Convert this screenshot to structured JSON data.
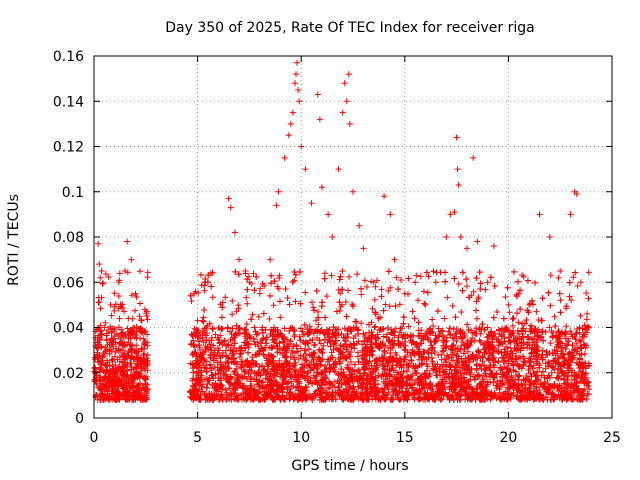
{
  "chart_data": {
    "type": "scatter",
    "title": "Day 350 of 2025, Rate Of TEC Index for receiver riga",
    "xlabel": "GPS time / hours",
    "ylabel": "ROTI / TECUs",
    "xlim": [
      0,
      25
    ],
    "ylim": [
      0,
      0.16
    ],
    "x_ticks": [
      "0",
      "5",
      "10",
      "15",
      "20",
      "25"
    ],
    "y_ticks": [
      "0",
      "0.02",
      "0.04",
      "0.06",
      "0.08",
      "0.1",
      "0.12",
      "0.14",
      "0.16"
    ],
    "grid": true,
    "marker": "+",
    "color": "#ff0000",
    "series": [
      {
        "name": "",
        "coverage_hours": [
          [
            0,
            2.6
          ],
          [
            4.6,
            23.9
          ]
        ],
        "typical_range": [
          0.008,
          0.04
        ],
        "points": [
          [
            0.2,
            0.077
          ],
          [
            0.25,
            0.068
          ],
          [
            0.3,
            0.062
          ],
          [
            0.5,
            0.04
          ],
          [
            0.8,
            0.05
          ],
          [
            1.2,
            0.06
          ],
          [
            1.5,
            0.065
          ],
          [
            1.6,
            0.078
          ],
          [
            1.8,
            0.07
          ],
          [
            2.0,
            0.055
          ],
          [
            2.2,
            0.045
          ],
          [
            2.4,
            0.035
          ],
          [
            6.5,
            0.097
          ],
          [
            6.6,
            0.093
          ],
          [
            6.8,
            0.082
          ],
          [
            7.0,
            0.07
          ],
          [
            7.5,
            0.06
          ],
          [
            8.0,
            0.055
          ],
          [
            8.5,
            0.07
          ],
          [
            8.8,
            0.094
          ],
          [
            8.9,
            0.1
          ],
          [
            9.2,
            0.115
          ],
          [
            9.4,
            0.125
          ],
          [
            9.5,
            0.13
          ],
          [
            9.6,
            0.135
          ],
          [
            9.7,
            0.148
          ],
          [
            9.75,
            0.152
          ],
          [
            9.8,
            0.157
          ],
          [
            9.85,
            0.145
          ],
          [
            9.9,
            0.14
          ],
          [
            10.0,
            0.12
          ],
          [
            10.2,
            0.11
          ],
          [
            10.5,
            0.095
          ],
          [
            10.8,
            0.143
          ],
          [
            10.9,
            0.132
          ],
          [
            11.0,
            0.102
          ],
          [
            11.3,
            0.09
          ],
          [
            11.5,
            0.08
          ],
          [
            11.8,
            0.11
          ],
          [
            12.0,
            0.135
          ],
          [
            12.1,
            0.148
          ],
          [
            12.2,
            0.14
          ],
          [
            12.3,
            0.152
          ],
          [
            12.35,
            0.13
          ],
          [
            12.5,
            0.1
          ],
          [
            12.8,
            0.085
          ],
          [
            13.0,
            0.075
          ],
          [
            13.5,
            0.06
          ],
          [
            14.0,
            0.098
          ],
          [
            14.3,
            0.09
          ],
          [
            14.5,
            0.07
          ],
          [
            15.0,
            0.055
          ],
          [
            15.5,
            0.06
          ],
          [
            16.0,
            0.05
          ],
          [
            16.5,
            0.06
          ],
          [
            17.0,
            0.08
          ],
          [
            17.2,
            0.09
          ],
          [
            17.4,
            0.091
          ],
          [
            17.5,
            0.124
          ],
          [
            17.55,
            0.11
          ],
          [
            17.6,
            0.103
          ],
          [
            17.7,
            0.08
          ],
          [
            18.0,
            0.075
          ],
          [
            18.3,
            0.115
          ],
          [
            18.5,
            0.078
          ],
          [
            19.0,
            0.06
          ],
          [
            19.3,
            0.076
          ],
          [
            20.0,
            0.05
          ],
          [
            20.5,
            0.055
          ],
          [
            21.0,
            0.05
          ],
          [
            21.5,
            0.09
          ],
          [
            22.0,
            0.08
          ],
          [
            22.5,
            0.065
          ],
          [
            23.0,
            0.09
          ],
          [
            23.2,
            0.1
          ],
          [
            23.3,
            0.099
          ],
          [
            23.5,
            0.06
          ],
          [
            23.8,
            0.046
          ]
        ]
      }
    ]
  }
}
